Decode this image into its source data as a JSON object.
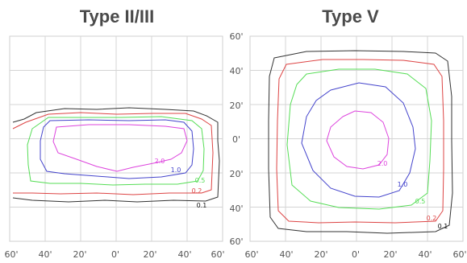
{
  "titles": {
    "left": "Type II/III",
    "right": "Type V"
  },
  "x_ticks": [
    "60'",
    "40'",
    "20'",
    "0'",
    "20'",
    "40'",
    "60'"
  ],
  "y_ticks": [
    "60'",
    "40'",
    "20'",
    "0'",
    "20'",
    "40'",
    "60'"
  ],
  "colors": {
    "0.1": "#333333",
    "0.2": "#dd4444",
    "0.5": "#55dd55",
    "1.0": "#4444cc",
    "2.0": "#dd44dd"
  },
  "contour_labels": [
    "0.1",
    "0.2",
    "0.5",
    "1.0",
    "2.0"
  ]
}
